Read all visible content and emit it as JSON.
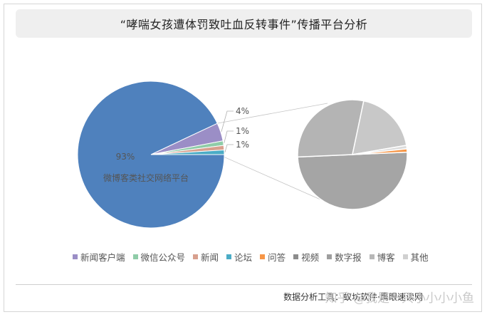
{
  "chart_data": {
    "type": "pie",
    "title": "“哮喘女孩遭体罚致吐血反转事件”传播平台分析",
    "main_pie": {
      "slices": [
        {
          "name": "微博客类社交网络平台",
          "value": 93,
          "label": "93%",
          "color": "#4f81bd"
        },
        {
          "name": "新闻客户端",
          "value": 4,
          "label": "4%",
          "color": "#9b8ec6"
        },
        {
          "name": "微信公众号",
          "value": 1,
          "label": "1%",
          "color": "#8fcca8"
        },
        {
          "name": "新闻",
          "value": 1,
          "label": "1%",
          "color": "#d8a08e"
        },
        {
          "name": "论坛",
          "value": 1,
          "label": "1%",
          "color": "#4bacc6"
        }
      ]
    },
    "secondary_pie": {
      "slices": [
        {
          "name": "视频",
          "value": 50,
          "color": "#a5a5a5"
        },
        {
          "name": "数字报",
          "value": 29,
          "color": "#b4b4b4"
        },
        {
          "name": "博客",
          "value": 19,
          "color": "#c8c8c8"
        },
        {
          "name": "其他",
          "value": 1,
          "color": "#dcdcdc"
        },
        {
          "name": "问答",
          "value": 1,
          "color": "#f79646"
        }
      ]
    },
    "legend": [
      {
        "name": "新闻客户端",
        "color": "#9b8ec6"
      },
      {
        "name": "微信公众号",
        "color": "#8fcca8"
      },
      {
        "name": "新闻",
        "color": "#d8a08e"
      },
      {
        "name": "论坛",
        "color": "#4bacc6"
      },
      {
        "name": "问答",
        "color": "#f79646"
      },
      {
        "name": "视频",
        "color": "#8c8c8c"
      },
      {
        "name": "数字报",
        "color": "#9e9e9e"
      },
      {
        "name": "博客",
        "color": "#b8b8b8"
      },
      {
        "name": "其他",
        "color": "#d0d0d0"
      }
    ],
    "legend_position": "bottom"
  },
  "footer": {
    "tools_note": "数据分析工具：蚁坊软件·鹰眼速读网",
    "watermark": "知乎 @我是一只小小小小鱼"
  }
}
